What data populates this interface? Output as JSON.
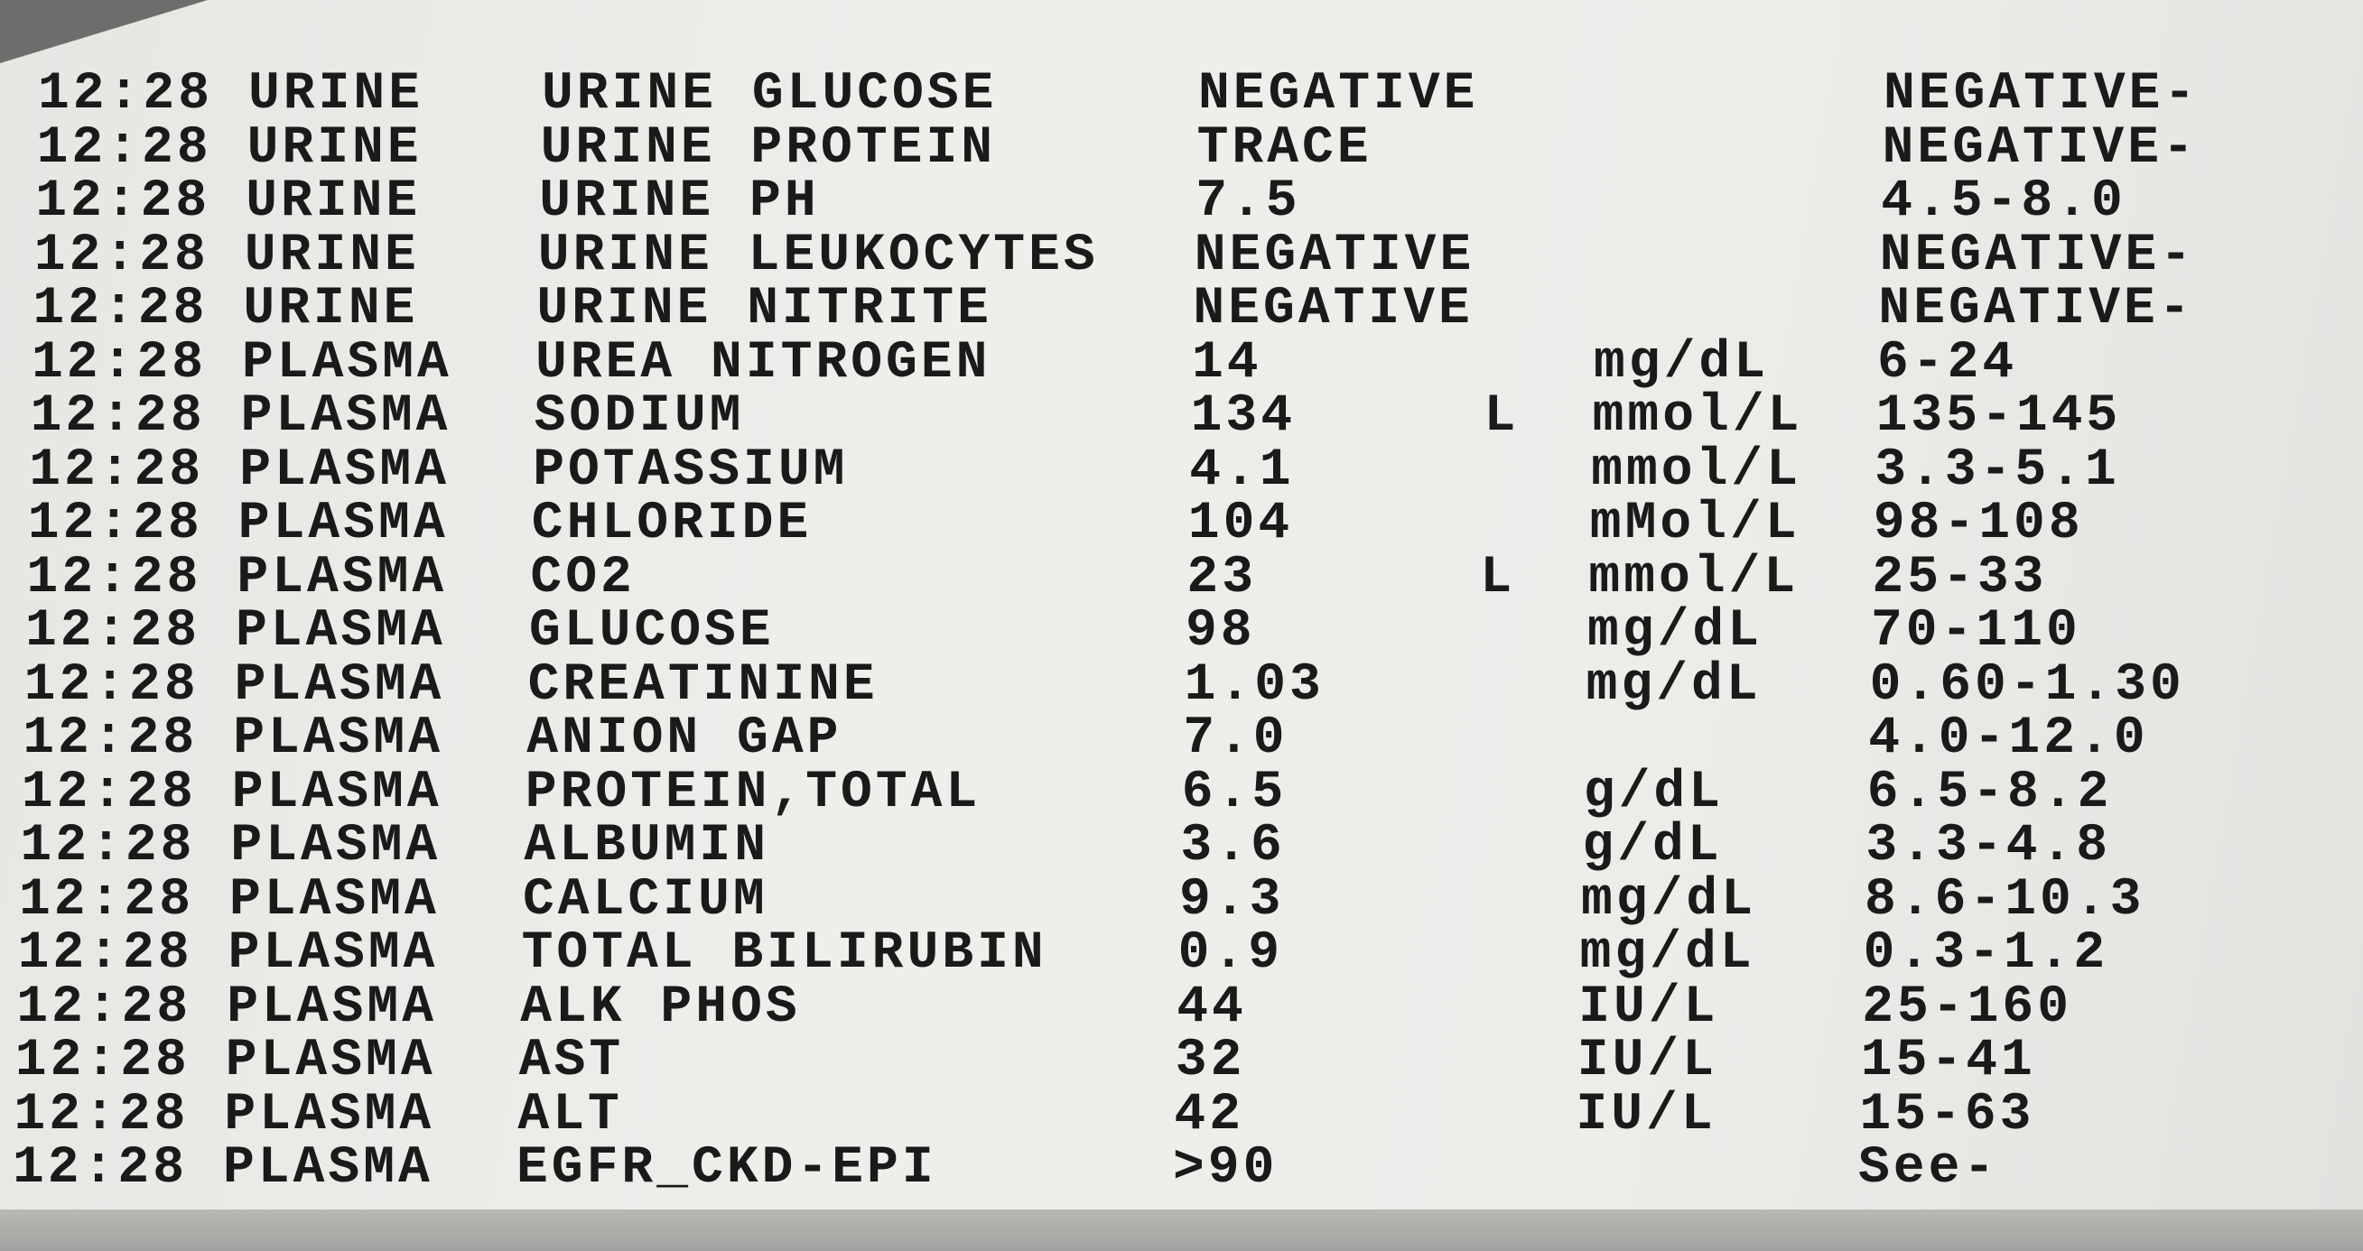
{
  "columns": [
    "time",
    "specimen",
    "test",
    "result",
    "flag",
    "units",
    "reference_range"
  ],
  "rows": [
    {
      "time": "12:28",
      "specimen": "URINE",
      "test": "URINE GLUCOSE",
      "result": "NEGATIVE",
      "flag": "",
      "units": "",
      "range": "NEGATIVE-"
    },
    {
      "time": "12:28",
      "specimen": "URINE",
      "test": "URINE PROTEIN",
      "result": "TRACE",
      "flag": "",
      "units": "",
      "range": "NEGATIVE-"
    },
    {
      "time": "12:28",
      "specimen": "URINE",
      "test": "URINE PH",
      "result": "7.5",
      "flag": "",
      "units": "",
      "range": "4.5-8.0"
    },
    {
      "time": "12:28",
      "specimen": "URINE",
      "test": "URINE LEUKOCYTES",
      "result": "NEGATIVE",
      "flag": "",
      "units": "",
      "range": "NEGATIVE-"
    },
    {
      "time": "12:28",
      "specimen": "URINE",
      "test": "URINE NITRITE",
      "result": "NEGATIVE",
      "flag": "",
      "units": "",
      "range": "NEGATIVE-"
    },
    {
      "time": "12:28",
      "specimen": "PLASMA",
      "test": "UREA NITROGEN",
      "result": "14",
      "flag": "",
      "units": "mg/dL",
      "range": "6-24"
    },
    {
      "time": "12:28",
      "specimen": "PLASMA",
      "test": "SODIUM",
      "result": "134",
      "flag": "L",
      "units": "mmol/L",
      "range": "135-145"
    },
    {
      "time": "12:28",
      "specimen": "PLASMA",
      "test": "POTASSIUM",
      "result": "4.1",
      "flag": "",
      "units": "mmol/L",
      "range": "3.3-5.1"
    },
    {
      "time": "12:28",
      "specimen": "PLASMA",
      "test": "CHLORIDE",
      "result": "104",
      "flag": "",
      "units": "mMol/L",
      "range": "98-108"
    },
    {
      "time": "12:28",
      "specimen": "PLASMA",
      "test": "CO2",
      "result": "23",
      "flag": "L",
      "units": "mmol/L",
      "range": "25-33"
    },
    {
      "time": "12:28",
      "specimen": "PLASMA",
      "test": "GLUCOSE",
      "result": "98",
      "flag": "",
      "units": "mg/dL",
      "range": "70-110"
    },
    {
      "time": "12:28",
      "specimen": "PLASMA",
      "test": "CREATININE",
      "result": "1.03",
      "flag": "",
      "units": "mg/dL",
      "range": "0.60-1.30"
    },
    {
      "time": "12:28",
      "specimen": "PLASMA",
      "test": "ANION GAP",
      "result": "7.0",
      "flag": "",
      "units": "",
      "range": "4.0-12.0"
    },
    {
      "time": "12:28",
      "specimen": "PLASMA",
      "test": "PROTEIN,TOTAL",
      "result": "6.5",
      "flag": "",
      "units": "g/dL",
      "range": "6.5-8.2"
    },
    {
      "time": "12:28",
      "specimen": "PLASMA",
      "test": "ALBUMIN",
      "result": "3.6",
      "flag": "",
      "units": "g/dL",
      "range": "3.3-4.8"
    },
    {
      "time": "12:28",
      "specimen": "PLASMA",
      "test": "CALCIUM",
      "result": "9.3",
      "flag": "",
      "units": "mg/dL",
      "range": "8.6-10.3"
    },
    {
      "time": "12:28",
      "specimen": "PLASMA",
      "test": "TOTAL BILIRUBIN",
      "result": "0.9",
      "flag": "",
      "units": "mg/dL",
      "range": "0.3-1.2"
    },
    {
      "time": "12:28",
      "specimen": "PLASMA",
      "test": "ALK PHOS",
      "result": "44",
      "flag": "",
      "units": "IU/L",
      "range": "25-160"
    },
    {
      "time": "12:28",
      "specimen": "PLASMA",
      "test": "AST",
      "result": "32",
      "flag": "",
      "units": "IU/L",
      "range": "15-41"
    },
    {
      "time": "12:28",
      "specimen": "PLASMA",
      "test": "ALT",
      "result": "42",
      "flag": "",
      "units": "IU/L",
      "range": "15-63"
    },
    {
      "time": "12:28",
      "specimen": "PLASMA",
      "test": "EGFR_CKD-EPI",
      "result": ">90",
      "flag": "",
      "units": "",
      "range": "See-"
    }
  ]
}
